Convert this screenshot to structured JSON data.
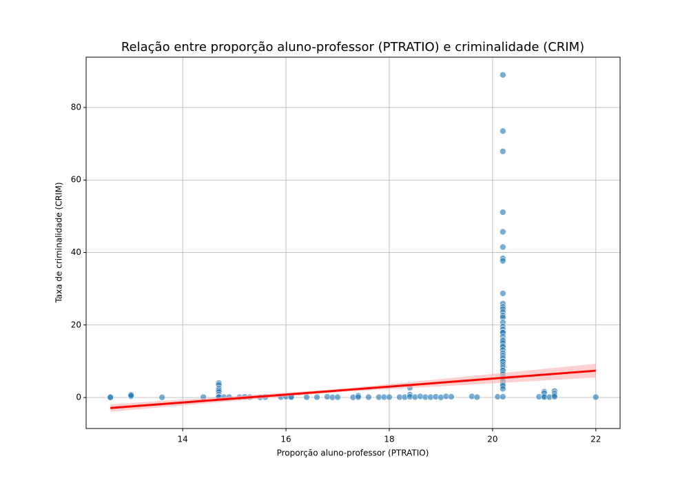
{
  "chart_data": {
    "type": "scatter",
    "title": "Relação entre proporção aluno-professor (PTRATIO) e criminalidade (CRIM)",
    "x_label": "Proporção aluno-professor (PTRATIO)",
    "y_label": "Taxa de criminalidade (CRIM)",
    "xlim": [
      12.13,
      22.47
    ],
    "ylim": [
      -8.55,
      93.87
    ],
    "xticks": [
      14,
      16,
      18,
      20,
      22
    ],
    "yticks": [
      0,
      20,
      40,
      60,
      80
    ],
    "grid": true,
    "points": {
      "color": "#1f77b4",
      "x": [
        12.6,
        12.6,
        13,
        13,
        13,
        13.6,
        14.4,
        14.7,
        14.7,
        14.7,
        14.7,
        14.7,
        14.7,
        14.7,
        14.7,
        14.8,
        14.9,
        15.1,
        15.2,
        15.3,
        15.5,
        15.6,
        15.9,
        16.0,
        16.1,
        16.1,
        16.4,
        16.6,
        16.8,
        16.9,
        17.0,
        17.3,
        17.4,
        17.4,
        17.6,
        17.8,
        17.9,
        18.0,
        18.2,
        18.3,
        18.4,
        18.4,
        18.4,
        18.5,
        18.6,
        18.7,
        18.8,
        18.9,
        19.0,
        19.1,
        19.2,
        19.6,
        19.7,
        20.1,
        20.2,
        20.2,
        20.2,
        20.2,
        20.2,
        20.2,
        20.2,
        20.2,
        20.2,
        20.2,
        20.2,
        20.2,
        20.2,
        20.2,
        20.2,
        20.2,
        20.2,
        20.2,
        20.2,
        20.2,
        20.2,
        20.2,
        20.2,
        20.2,
        20.2,
        20.2,
        20.2,
        20.2,
        20.2,
        20.2,
        20.2,
        20.2,
        20.2,
        20.2,
        20.2,
        20.2,
        20.2,
        20.2,
        20.2,
        20.2,
        20.2,
        20.2,
        20.2,
        20.2,
        20.2,
        20.2,
        20.2,
        20.2,
        20.9,
        21.0,
        21.0,
        21.0,
        21.0,
        21.1,
        21.2,
        21.2,
        21.2,
        21.2,
        22.0
      ],
      "values": [
        0.1,
        0.05,
        0.3,
        0.8,
        0.5,
        0.05,
        0.1,
        4.0,
        3.5,
        2.5,
        2.0,
        1.5,
        0.8,
        0.3,
        0.1,
        0.1,
        0.1,
        0.1,
        0.2,
        0.1,
        0.05,
        0.1,
        0.1,
        0.2,
        0.3,
        0.1,
        0.1,
        0.1,
        0.2,
        0.05,
        0.1,
        0.05,
        0.5,
        0.1,
        0.1,
        0.1,
        0.1,
        0.1,
        0.1,
        0.1,
        2.7,
        0.8,
        0.2,
        0.1,
        0.3,
        0.1,
        0.1,
        0.2,
        0.05,
        0.3,
        0.2,
        0.3,
        0.1,
        0.2,
        88.98,
        73.5,
        67.9,
        51.1,
        45.7,
        41.5,
        38.4,
        37.7,
        28.7,
        25.9,
        25.0,
        24.4,
        23.6,
        22.6,
        22.1,
        20.7,
        19.6,
        18.8,
        18.1,
        17.9,
        16.8,
        15.9,
        15.6,
        15.0,
        14.3,
        14.0,
        13.1,
        12.2,
        11.6,
        11.1,
        10.7,
        10.1,
        9.9,
        9.2,
        8.7,
        8.2,
        7.7,
        7.4,
        6.8,
        6.4,
        5.8,
        5.3,
        4.9,
        4.4,
        3.7,
        3.2,
        2.4,
        0.2,
        0.2,
        1.6,
        1.2,
        0.4,
        0.1,
        0.1,
        1.8,
        1.1,
        0.6,
        0.2,
        0.1
      ]
    },
    "regression": {
      "color": "#ff0000",
      "band_color": "#ffb0b0",
      "x": [
        12.6,
        17,
        22
      ],
      "values": [
        -2.9,
        1.9,
        7.4
      ],
      "band_lower": [
        -3.9,
        1.5,
        5.5
      ],
      "band_upper": [
        -1.9,
        2.3,
        9.3
      ]
    }
  }
}
